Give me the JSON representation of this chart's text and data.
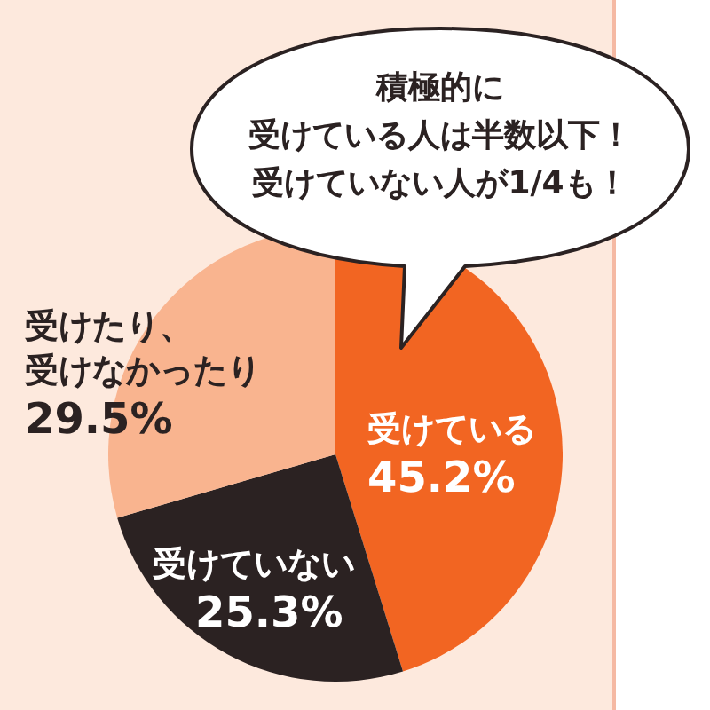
{
  "chart_data": {
    "type": "pie",
    "categories": [
      "受けている",
      "受けていない",
      "受けたり、受けなかったり"
    ],
    "values": [
      45.2,
      25.3,
      29.5
    ],
    "colors": [
      "#f26522",
      "#2b2222",
      "#f9b48f"
    ],
    "value_labels": [
      "45.2%",
      "25.3%",
      "29.5%"
    ],
    "annotations": [
      "積極的に",
      "受けている人は半数以下！",
      "受けていない人が1/4も！"
    ]
  }
}
